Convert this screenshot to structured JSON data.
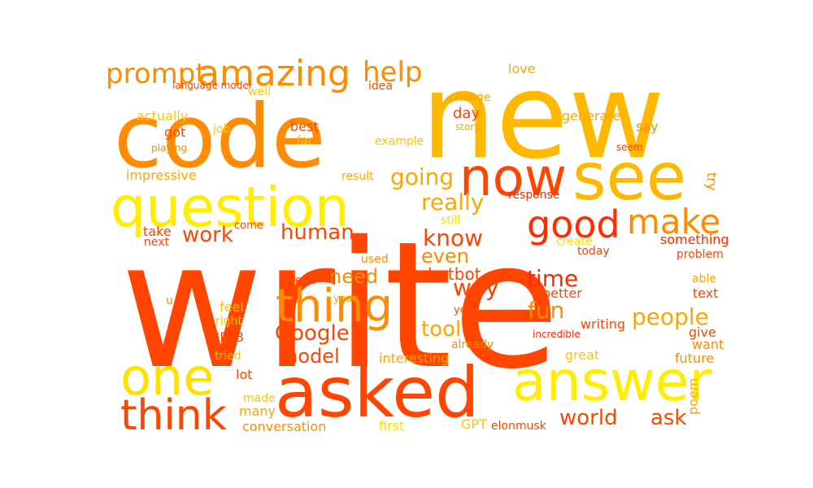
{
  "palette": [
    "#ff4500",
    "#ff8c00",
    "#ffa500",
    "#ffc400",
    "#ffd700",
    "#ffee00",
    "#ff2a00"
  ],
  "words": [
    {
      "text": "write",
      "color": "#ff4500"
    },
    {
      "text": "new",
      "color": "#ffb800"
    },
    {
      "text": "code",
      "color": "#ff8c00"
    },
    {
      "text": "asked",
      "color": "#ff4500"
    },
    {
      "text": "answer",
      "color": "#ffee00"
    },
    {
      "text": "question",
      "color": "#ffee00"
    },
    {
      "text": "see",
      "color": "#ffb800"
    },
    {
      "text": "now",
      "color": "#ff4500"
    },
    {
      "text": "one",
      "color": "#ffe000"
    },
    {
      "text": "thing",
      "color": "#ff8c00"
    },
    {
      "text": "think",
      "color": "#ff4500"
    },
    {
      "text": "good",
      "color": "#ff2a00"
    },
    {
      "text": "make",
      "color": "#ff8c00"
    },
    {
      "text": "amazing",
      "color": "#ff8c00"
    },
    {
      "text": "prompt",
      "color": "#ff8c00"
    },
    {
      "text": "help",
      "color": "#ff8c00"
    },
    {
      "text": "really",
      "color": "#ffa500"
    },
    {
      "text": "going",
      "color": "#ffa500"
    },
    {
      "text": "know",
      "color": "#ff4500"
    },
    {
      "text": "even",
      "color": "#ff8c00"
    },
    {
      "text": "human",
      "color": "#ff4500"
    },
    {
      "text": "work",
      "color": "#ff4500"
    },
    {
      "text": "way",
      "color": "#ff4500"
    },
    {
      "text": "time",
      "color": "#ff2a00"
    },
    {
      "text": "fun",
      "color": "#ff8c00"
    },
    {
      "text": "people",
      "color": "#ffa500"
    },
    {
      "text": "need",
      "color": "#ff8c00"
    },
    {
      "text": "chatbot",
      "color": "#ff4500"
    },
    {
      "text": "Google",
      "color": "#ff4500"
    },
    {
      "text": "tool",
      "color": "#ffa500"
    },
    {
      "text": "model",
      "color": "#ff4500"
    },
    {
      "text": "world",
      "color": "#ff4500"
    },
    {
      "text": "ask",
      "color": "#ff4500"
    },
    {
      "text": "impressive",
      "color": "#ffa500"
    },
    {
      "text": "result",
      "color": "#ffa500"
    },
    {
      "text": "response",
      "color": "#ff2a00"
    },
    {
      "text": "actually",
      "color": "#ffc400"
    },
    {
      "text": "job",
      "color": "#ffc400"
    },
    {
      "text": "got",
      "color": "#ff4500"
    },
    {
      "text": "best",
      "color": "#ff4500"
    },
    {
      "text": "far",
      "color": "#ffc400"
    },
    {
      "text": "example",
      "color": "#ffc400"
    },
    {
      "text": "day",
      "color": "#ff4500"
    },
    {
      "text": "change",
      "color": "#ffa500"
    },
    {
      "text": "story",
      "color": "#ffa500"
    },
    {
      "text": "generate",
      "color": "#ffa500"
    },
    {
      "text": "say",
      "color": "#ff8c00"
    },
    {
      "text": "love",
      "color": "#ffa500"
    },
    {
      "text": "idea",
      "color": "#ff4500"
    },
    {
      "text": "well",
      "color": "#ffc400"
    },
    {
      "text": "language model",
      "color": "#ff4500"
    },
    {
      "text": "playing",
      "color": "#ff8c00"
    },
    {
      "text": "seem",
      "color": "#ff4500"
    },
    {
      "text": "try",
      "color": "#ff8c00"
    },
    {
      "text": "still",
      "color": "#ffe000"
    },
    {
      "text": "create",
      "color": "#ffe000"
    },
    {
      "text": "today",
      "color": "#ff4500"
    },
    {
      "text": "something",
      "color": "#ff2a00"
    },
    {
      "text": "problem",
      "color": "#ff4500"
    },
    {
      "text": "take",
      "color": "#ff4500"
    },
    {
      "text": "next",
      "color": "#ff4500"
    },
    {
      "text": "come",
      "color": "#ff4500"
    },
    {
      "text": "used",
      "color": "#ff8c00"
    },
    {
      "text": "year",
      "color": "#ffa500"
    },
    {
      "text": "thread",
      "color": "#ff4500"
    },
    {
      "text": "u",
      "color": "#ff8c00"
    },
    {
      "text": "feel",
      "color": "#ffc400"
    },
    {
      "text": "right",
      "color": "#ffc400"
    },
    {
      "text": "yet",
      "color": "#ff4500"
    },
    {
      "text": "better",
      "color": "#ff4500"
    },
    {
      "text": "able",
      "color": "#ffa500"
    },
    {
      "text": "text",
      "color": "#ff4500"
    },
    {
      "text": "GPT3",
      "color": "#ff4500"
    },
    {
      "text": "writing",
      "color": "#ff4500"
    },
    {
      "text": "incredible",
      "color": "#ff2a00"
    },
    {
      "text": "already",
      "color": "#ff8c00"
    },
    {
      "text": "give",
      "color": "#ff4500"
    },
    {
      "text": "want",
      "color": "#ff8c00"
    },
    {
      "text": "tried",
      "color": "#ffc400"
    },
    {
      "text": "interesting",
      "color": "#ffa500"
    },
    {
      "text": "great",
      "color": "#ffc400"
    },
    {
      "text": "future",
      "color": "#ff8c00"
    },
    {
      "text": "lot",
      "color": "#ff4500"
    },
    {
      "text": "made",
      "color": "#ffc400"
    },
    {
      "text": "many",
      "color": "#ffa500"
    },
    {
      "text": "poem",
      "color": "#ffa500"
    },
    {
      "text": "conversation",
      "color": "#ff8c00"
    },
    {
      "text": "first",
      "color": "#ffe000"
    },
    {
      "text": "GPT",
      "color": "#ffc400"
    },
    {
      "text": "elonmusk",
      "color": "#ff4500"
    }
  ]
}
